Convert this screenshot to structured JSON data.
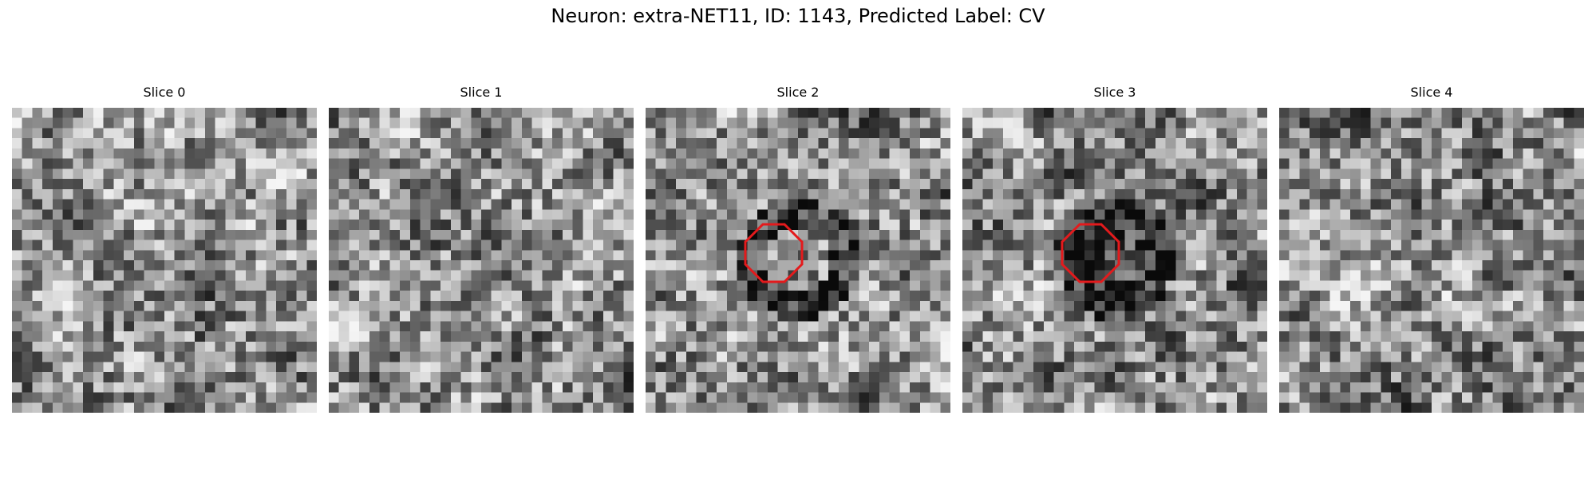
{
  "figure": {
    "title": "Neuron: extra-NET11, ID: 1143, Predicted Label: CV"
  },
  "slices": [
    {
      "label": "Slice 0",
      "roi_marker": false
    },
    {
      "label": "Slice 1",
      "roi_marker": false
    },
    {
      "label": "Slice 2",
      "roi_marker": true,
      "roi_color": "#e41a1c"
    },
    {
      "label": "Slice 3",
      "roi_marker": true,
      "roi_color": "#e41a1c"
    },
    {
      "label": "Slice 4",
      "roi_marker": false
    }
  ],
  "colormap": "gray"
}
